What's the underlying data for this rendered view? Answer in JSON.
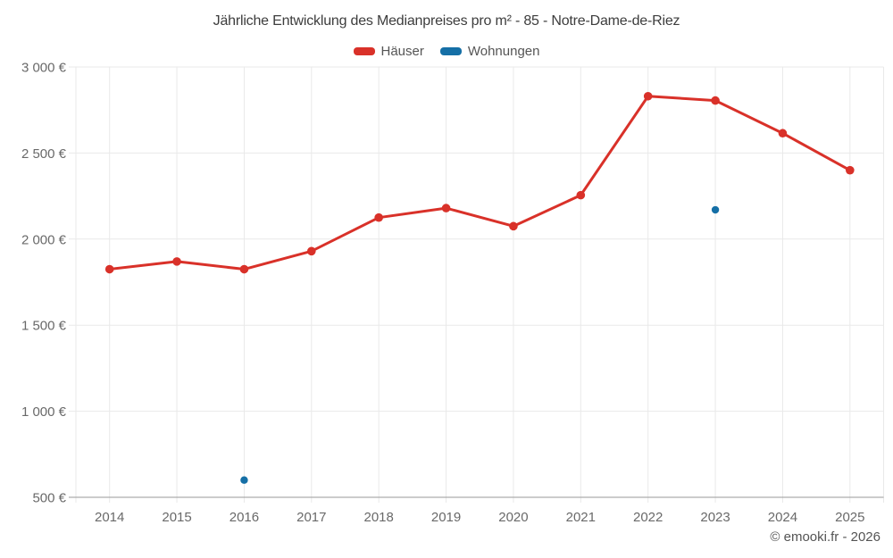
{
  "footer": {
    "copyright": "© emooki.fr - 2026"
  },
  "chart_data": {
    "type": "line",
    "title": "Jährliche Entwicklung des Medianpreises pro m² - 85 - Notre-Dame-de-Riez",
    "categories": [
      "2014",
      "2015",
      "2016",
      "2017",
      "2018",
      "2019",
      "2020",
      "2021",
      "2022",
      "2023",
      "2024",
      "2025"
    ],
    "series": [
      {
        "name": "Häuser",
        "type": "line",
        "color": "#d93129",
        "values": [
          1825,
          1870,
          1825,
          1930,
          2125,
          2180,
          2075,
          2255,
          2830,
          2805,
          2615,
          2400
        ]
      },
      {
        "name": "Wohnungen",
        "type": "scatter",
        "color": "#156fa6",
        "values": [
          null,
          null,
          600,
          null,
          null,
          null,
          null,
          null,
          null,
          2170,
          null,
          null
        ]
      }
    ],
    "ylim": [
      500,
      3000
    ],
    "yticks": [
      500,
      1000,
      1500,
      2000,
      2500,
      3000
    ],
    "ytick_labels": [
      "500 €",
      "1 000 €",
      "1 500 €",
      "2 000 €",
      "2 500 €",
      "3 000 €"
    ],
    "grid": true,
    "legend_position": "top",
    "axis_colors": {
      "grid": "#e9e9e9",
      "axis_line": "#9a9a9a",
      "tick_label": "#696969"
    }
  }
}
